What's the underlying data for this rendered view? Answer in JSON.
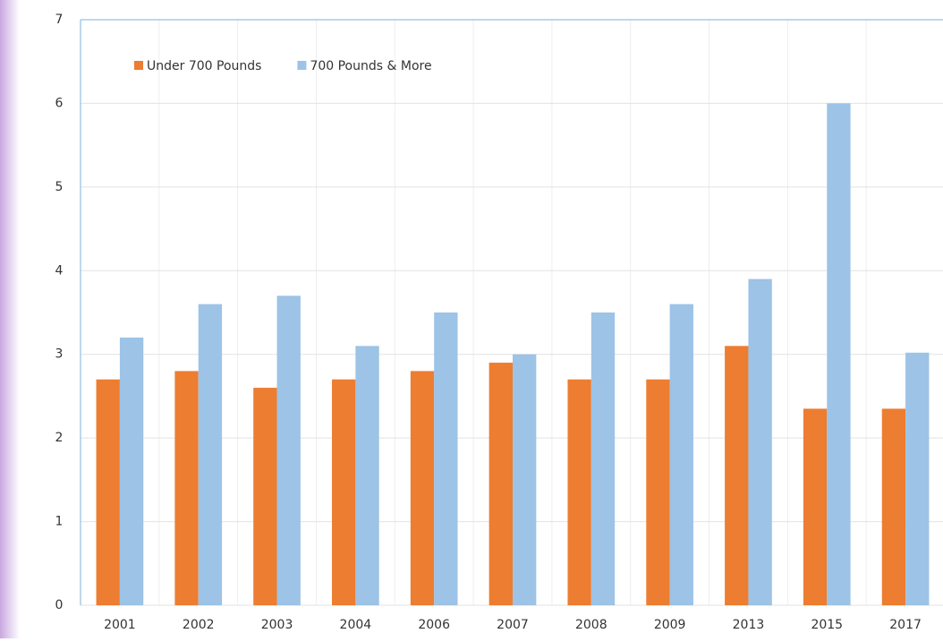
{
  "chart_data": {
    "type": "bar",
    "categories": [
      "2001",
      "2002",
      "2003",
      "2004",
      "2006",
      "2007",
      "2008",
      "2009",
      "2013",
      "2015",
      "2017"
    ],
    "series": [
      {
        "name": "Under 700 Pounds",
        "color": "#ed7d31",
        "values": [
          2.7,
          2.8,
          2.6,
          2.7,
          2.8,
          2.9,
          2.7,
          2.7,
          3.1,
          2.35,
          2.35
        ]
      },
      {
        "name": "700 Pounds & More",
        "color": "#9dc3e6",
        "values": [
          3.2,
          3.6,
          3.7,
          3.1,
          3.5,
          3.0,
          3.5,
          3.6,
          3.9,
          6.0,
          3.02
        ]
      }
    ],
    "ylim": [
      0,
      7
    ],
    "yticks": [
      0,
      1,
      2,
      3,
      4,
      5,
      6,
      7
    ],
    "grid": true,
    "legend": "top-left"
  }
}
